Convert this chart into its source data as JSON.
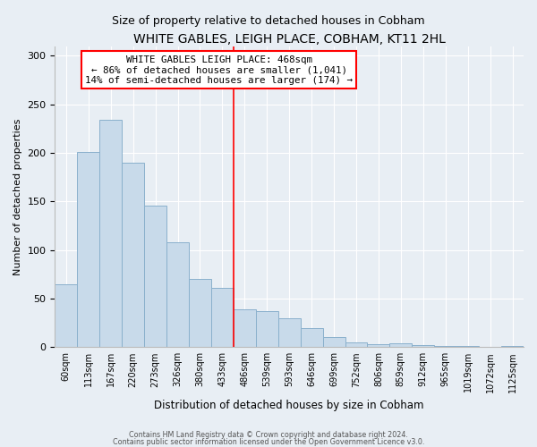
{
  "title": "WHITE GABLES, LEIGH PLACE, COBHAM, KT11 2HL",
  "subtitle": "Size of property relative to detached houses in Cobham",
  "xlabel": "Distribution of detached houses by size in Cobham",
  "ylabel": "Number of detached properties",
  "bar_color": "#c8daea",
  "bar_edge_color": "#8ab0cc",
  "categories": [
    "60sqm",
    "113sqm",
    "167sqm",
    "220sqm",
    "273sqm",
    "326sqm",
    "380sqm",
    "433sqm",
    "486sqm",
    "539sqm",
    "593sqm",
    "646sqm",
    "699sqm",
    "752sqm",
    "806sqm",
    "859sqm",
    "912sqm",
    "965sqm",
    "1019sqm",
    "1072sqm",
    "1125sqm"
  ],
  "values": [
    65,
    201,
    234,
    190,
    146,
    108,
    70,
    61,
    39,
    37,
    30,
    20,
    10,
    5,
    3,
    4,
    2,
    1,
    1,
    0,
    1
  ],
  "ylim": [
    0,
    310
  ],
  "yticks": [
    0,
    50,
    100,
    150,
    200,
    250,
    300
  ],
  "annotation_text_line1": "WHITE GABLES LEIGH PLACE: 468sqm",
  "annotation_text_line2": "← 86% of detached houses are smaller (1,041)",
  "annotation_text_line3": "14% of semi-detached houses are larger (174) →",
  "marker_bar_index": 8,
  "footer_line1": "Contains HM Land Registry data © Crown copyright and database right 2024.",
  "footer_line2": "Contains public sector information licensed under the Open Government Licence v3.0.",
  "background_color": "#e8eef4",
  "plot_bg_color": "#e8eef4",
  "grid_color": "#ffffff",
  "title_fontsize": 10,
  "subtitle_fontsize": 9
}
